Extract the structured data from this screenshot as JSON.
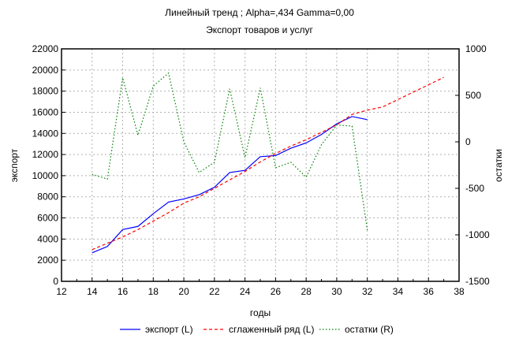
{
  "chart_data": {
    "type": "line",
    "title": "Линейный тренд ; Alpha=,434 Gamma=0,00",
    "subtitle": "Экспорт товаров и услуг",
    "xlabel": "годы",
    "ylabel": "экспорт",
    "ylabel_right": "остатки",
    "xlim": [
      12,
      38
    ],
    "ylim": [
      0,
      22000
    ],
    "ylim_right": [
      -1500,
      1000
    ],
    "x_ticks": [
      12,
      14,
      16,
      18,
      20,
      22,
      24,
      26,
      28,
      30,
      32,
      34,
      36,
      38
    ],
    "y_ticks": [
      0,
      2000,
      4000,
      6000,
      8000,
      10000,
      12000,
      14000,
      16000,
      18000,
      20000,
      22000
    ],
    "y_ticks_right": [
      -1500,
      -1000,
      -500,
      0,
      500,
      1000
    ],
    "grid": true,
    "legend_placement": "bottom",
    "series": [
      {
        "name": "экспорт (L)",
        "axis": "left",
        "color": "#0000ff",
        "style": "solid",
        "x": [
          14,
          15,
          16,
          17,
          18,
          19,
          20,
          21,
          22,
          23,
          24,
          25,
          26,
          27,
          28,
          29,
          30,
          31,
          32
        ],
        "values": [
          2700,
          3300,
          4900,
          5200,
          6400,
          7500,
          7800,
          8200,
          8900,
          10300,
          10500,
          11800,
          11900,
          12600,
          13100,
          13900,
          14900,
          15600,
          15300
        ]
      },
      {
        "name": "сглаженный ряд (L)",
        "axis": "left",
        "color": "#ff0000",
        "style": "dashed",
        "x": [
          14,
          15,
          16,
          17,
          18,
          19,
          20,
          21,
          22,
          23,
          24,
          25,
          26,
          27,
          28,
          29,
          30,
          31,
          32,
          33,
          34,
          35,
          36,
          37
        ],
        "values": [
          3000,
          3600,
          4200,
          4900,
          5700,
          6500,
          7400,
          8000,
          8800,
          9600,
          10400,
          11300,
          12100,
          12800,
          13400,
          14100,
          14800,
          15800,
          16200,
          16500,
          17200,
          17900,
          18600,
          19300
        ]
      },
      {
        "name": "остатки (R)",
        "axis": "right",
        "color": "#008000",
        "style": "dotted",
        "x": [
          14,
          15,
          16,
          17,
          18,
          19,
          20,
          21,
          22,
          23,
          24,
          25,
          26,
          27,
          28,
          29,
          30,
          31,
          32
        ],
        "values": [
          -350,
          -400,
          690,
          70,
          600,
          740,
          0,
          -330,
          -220,
          570,
          -170,
          580,
          -280,
          -220,
          -380,
          -30,
          180,
          170,
          -950
        ]
      }
    ]
  }
}
